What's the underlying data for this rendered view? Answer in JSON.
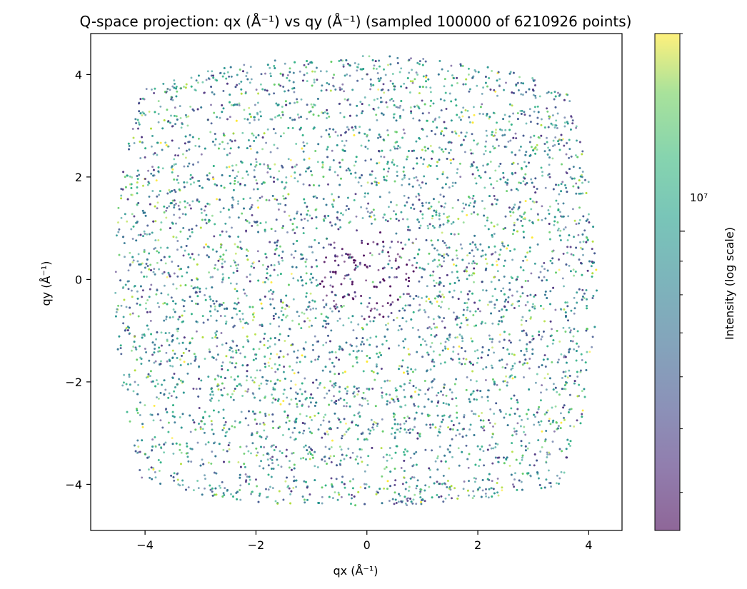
{
  "chart_data": {
    "type": "scatter",
    "title": "Q-space projection: qx (Å⁻¹) vs qy (Å⁻¹) (sampled 100000 of 6210926 points)",
    "xlabel": "qx (Å⁻¹)",
    "ylabel": "qy (Å⁻¹)",
    "xlim": [
      -4.98,
      4.6
    ],
    "ylim": [
      -4.9,
      4.8
    ],
    "x_ticks": [
      -4,
      -2,
      0,
      2,
      4
    ],
    "x_tick_labels": [
      "−4",
      "−2",
      "0",
      "2",
      "4"
    ],
    "y_ticks": [
      -4,
      -2,
      0,
      2,
      4
    ],
    "y_tick_labels": [
      "−4",
      "−2",
      "0",
      "2",
      "4"
    ],
    "grid": false,
    "sampled_points": 100000,
    "total_points": 6210926,
    "point_alpha": 0.6,
    "colormap": "viridis",
    "data_extent": {
      "qx_min": -4.55,
      "qx_max": 4.15,
      "qy_min": -4.45,
      "qy_max": 4.38,
      "corners": {
        "top_left": [
          -3.95,
          3.55
        ],
        "top_right": [
          3.55,
          3.75
        ],
        "bottom_left": [
          -3.9,
          -3.85
        ],
        "bottom_right": [
          3.3,
          -3.85
        ]
      }
    },
    "empty_gap_rows_qy": [
      3.6,
      3.05,
      2.45,
      1.75,
      0.85,
      -0.2,
      -1.05,
      -1.9,
      -2.55,
      -3.2,
      -3.8
    ],
    "low_intensity_region": {
      "center": [
        0,
        0.1
      ],
      "radius": 1.0
    },
    "colorbar": {
      "label": "Intensity (log scale)",
      "scale": "log",
      "major_tick_label": "10⁷",
      "major_tick_value": 10000000,
      "range_fraction_of_major": {
        "min": 0.35,
        "max": 2.0
      }
    }
  }
}
